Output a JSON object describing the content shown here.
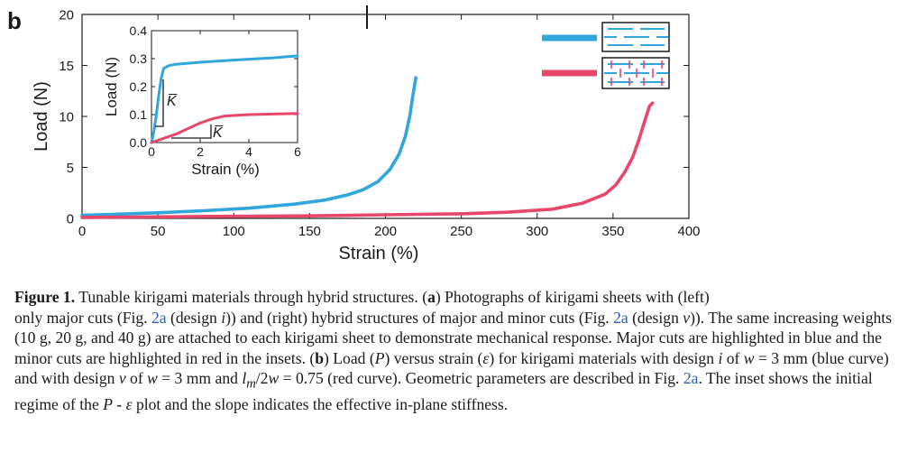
{
  "panel_label": "b",
  "chart_data": [
    {
      "type": "line",
      "xlabel": "Strain (%)",
      "ylabel": "Load (N)",
      "xlim": [
        0,
        400
      ],
      "ylim": [
        0,
        20
      ],
      "x_ticks": [
        "0",
        "50",
        "100",
        "150",
        "200",
        "250",
        "300",
        "350",
        "400"
      ],
      "y_ticks": [
        "0",
        "5",
        "10",
        "15",
        "20"
      ],
      "series": [
        {
          "color": "#2fa6dc",
          "points": [
            [
              0,
              0.3
            ],
            [
              20,
              0.4
            ],
            [
              50,
              0.55
            ],
            [
              80,
              0.75
            ],
            [
              110,
              1.0
            ],
            [
              140,
              1.4
            ],
            [
              160,
              1.8
            ],
            [
              175,
              2.3
            ],
            [
              185,
              2.8
            ],
            [
              195,
              3.6
            ],
            [
              203,
              4.8
            ],
            [
              209,
              6.3
            ],
            [
              213,
              8.0
            ],
            [
              216,
              10.0
            ],
            [
              218,
              12.0
            ],
            [
              220,
              13.8
            ]
          ]
        },
        {
          "color": "#e8466b",
          "points": [
            [
              0,
              0.1
            ],
            [
              50,
              0.15
            ],
            [
              100,
              0.2
            ],
            [
              150,
              0.25
            ],
            [
              200,
              0.35
            ],
            [
              250,
              0.45
            ],
            [
              280,
              0.6
            ],
            [
              310,
              0.9
            ],
            [
              330,
              1.5
            ],
            [
              345,
              2.4
            ],
            [
              352,
              3.3
            ],
            [
              358,
              4.6
            ],
            [
              363,
              6.0
            ],
            [
              367,
              7.7
            ],
            [
              371,
              9.6
            ],
            [
              374,
              11.0
            ],
            [
              376,
              11.3
            ]
          ]
        }
      ]
    },
    {
      "type": "line",
      "xlabel": "Strain (%)",
      "ylabel": "Load (N)",
      "xlim": [
        0,
        6
      ],
      "ylim": [
        0,
        0.4
      ],
      "x_ticks": [
        "0",
        "2",
        "4",
        "6"
      ],
      "y_ticks": [
        "0.0",
        "0.1",
        "0.2",
        "0.3",
        "0.4"
      ],
      "annotations": [
        "K̅",
        "K̅"
      ],
      "series": [
        {
          "color": "#2fa6dc",
          "points": [
            [
              0,
              0.0
            ],
            [
              0.1,
              0.04
            ],
            [
              0.2,
              0.1
            ],
            [
              0.3,
              0.17
            ],
            [
              0.4,
              0.23
            ],
            [
              0.5,
              0.265
            ],
            [
              0.7,
              0.275
            ],
            [
              1,
              0.28
            ],
            [
              2,
              0.287
            ],
            [
              3,
              0.293
            ],
            [
              4,
              0.298
            ],
            [
              5,
              0.303
            ],
            [
              6,
              0.31
            ]
          ]
        },
        {
          "color": "#e8466b",
          "points": [
            [
              0,
              0.0
            ],
            [
              0.5,
              0.015
            ],
            [
              1,
              0.03
            ],
            [
              1.5,
              0.05
            ],
            [
              2,
              0.07
            ],
            [
              2.5,
              0.085
            ],
            [
              3,
              0.095
            ],
            [
              4,
              0.1
            ],
            [
              5,
              0.102
            ],
            [
              6,
              0.104
            ]
          ]
        }
      ]
    }
  ],
  "caption": {
    "label": "Figure 1.",
    "line1": "Tunable kirigami materials through hybrid structures. (",
    "a": "a",
    "line1b": ") Photographs of kirigami sheets with (left)",
    "t2": "only major cuts (Fig. ",
    "ref_2a_1": "2a",
    "t3": " (design ",
    "i_1": "i",
    "t4": ")) and (right) hybrid structures of major and minor cuts (Fig. ",
    "ref_2a_2": "2a",
    "t5": " (design ",
    "v_1": "v",
    "t6": ")).",
    "t7": "The same increasing weights (10 g, 20 g, and 40 g) are attached to each kirigami sheet to demonstrate mechanical response. Major cuts are highlighted in blue and the minor cuts are highlighted in red in the insets. (",
    "b": "b",
    "t8": ") Load (",
    "P": "P",
    "t9": ") versus strain (",
    "eps": "ε",
    "t10": ") for kirigami materials with design ",
    "i_2": "i",
    "t11": " of ",
    "w1": "w",
    "t12": " = 3 mm (blue curve) and with design ",
    "v_2": "v",
    "t13": " of ",
    "w2": "w",
    "t14": " = 3 mm and ",
    "lm": "l",
    "lm_sub": "m",
    "t15": "/2",
    "w3": "w",
    "t16": " = 0.75 (red curve). Geometric parameters are described in Fig. ",
    "ref_2a_3": "2a",
    "t17": ". The inset shows the initial regime of the ",
    "P2": "P",
    "t18": " - ",
    "eps2": "ε",
    "t19": " plot and the slope indicates the effective in-plane stiffness."
  }
}
